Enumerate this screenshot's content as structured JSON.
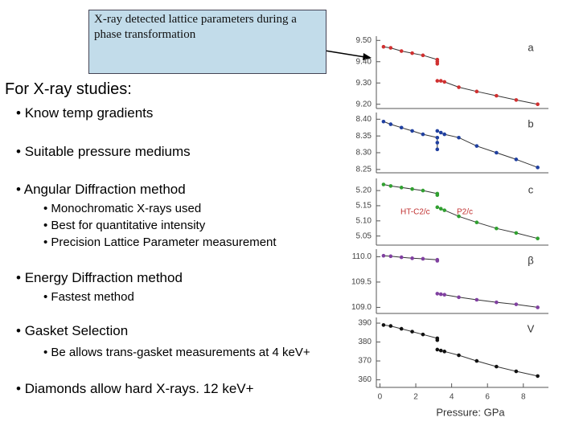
{
  "slide": {
    "callout": "X-ray detected lattice parameters during a phase transformation",
    "heading": "For X-ray studies:",
    "bullets": [
      {
        "text": "Know temp gradients"
      },
      {
        "text": "Suitable pressure mediums"
      },
      {
        "text": "Angular Diffraction method",
        "sub": [
          "Monochromatic X-rays used",
          "Best for quantitative intensity",
          "Precision Lattice Parameter measurement"
        ]
      },
      {
        "text": "Energy Diffraction method",
        "sub": [
          "Fastest method"
        ]
      },
      {
        "text": "Gasket Selection",
        "sub": [
          "Be allows trans-gasket measurements at 4 keV+"
        ]
      },
      {
        "text": "Diamonds allow hard X-rays. 12 keV+"
      }
    ]
  },
  "chart_data": [
    {
      "type": "scatter",
      "label": "a",
      "xlim": [
        -0.2,
        9.4
      ],
      "ylim": [
        9.18,
        9.52
      ],
      "yticks": [
        {
          "value": 9.2,
          "label": "9.20"
        },
        {
          "value": 9.3,
          "label": "9.30"
        },
        {
          "value": 9.4,
          "label": "9.40"
        },
        {
          "value": 9.5,
          "label": "9.50"
        }
      ],
      "line": true,
      "series": [
        {
          "color": "#d03030",
          "x": [
            0.2,
            0.6,
            1.2,
            1.8,
            2.4,
            3.2,
            3.2,
            3.2
          ],
          "values": [
            9.47,
            9.465,
            9.45,
            9.44,
            9.43,
            9.41,
            9.4,
            9.39
          ]
        },
        {
          "color": "#d03030",
          "x": [
            3.2,
            3.4,
            3.6,
            4.4,
            5.4,
            6.5,
            7.6,
            8.8
          ],
          "values": [
            9.31,
            9.31,
            9.305,
            9.28,
            9.26,
            9.24,
            9.22,
            9.2
          ]
        }
      ]
    },
    {
      "type": "scatter",
      "label": "b",
      "xlim": [
        -0.2,
        9.4
      ],
      "ylim": [
        8.24,
        8.42
      ],
      "yticks": [
        8.25,
        {
          "value": 8.3,
          "label": "8.30"
        },
        8.35,
        {
          "value": 8.4,
          "label": "8.40"
        }
      ],
      "line": true,
      "series": [
        {
          "color": "#2040a0",
          "x": [
            0.2,
            0.6,
            1.2,
            1.8,
            2.4,
            3.2,
            3.2,
            3.2
          ],
          "values": [
            8.393,
            8.385,
            8.375,
            8.365,
            8.355,
            8.345,
            8.33,
            8.31
          ]
        },
        {
          "color": "#2040a0",
          "x": [
            3.2,
            3.4,
            3.6,
            4.4,
            5.4,
            6.5,
            7.6,
            8.8
          ],
          "values": [
            8.365,
            8.36,
            8.355,
            8.345,
            8.32,
            8.3,
            8.28,
            8.256
          ]
        }
      ]
    },
    {
      "type": "scatter",
      "label": "c",
      "xlim": [
        -0.2,
        9.4
      ],
      "ylim": [
        5.02,
        5.24
      ],
      "yticks": [
        5.05,
        {
          "value": 5.1,
          "label": "5.10"
        },
        5.15,
        {
          "value": 5.2,
          "label": "5.20"
        }
      ],
      "line": true,
      "annotations": [
        "HT-C2/c",
        "P2/c"
      ],
      "series": [
        {
          "color": "#30a030",
          "x": [
            0.2,
            0.6,
            1.2,
            1.8,
            2.4,
            3.2,
            3.2
          ],
          "values": [
            5.22,
            5.215,
            5.21,
            5.205,
            5.2,
            5.19,
            5.185
          ]
        },
        {
          "color": "#30a030",
          "x": [
            3.2,
            3.4,
            3.6,
            4.4,
            5.4,
            6.5,
            7.6,
            8.8
          ],
          "values": [
            5.145,
            5.14,
            5.135,
            5.115,
            5.095,
            5.075,
            5.06,
            5.042
          ]
        }
      ]
    },
    {
      "type": "scatter",
      "label": "β",
      "xlim": [
        -0.2,
        9.4
      ],
      "ylim": [
        108.88,
        110.15
      ],
      "yticks": [
        {
          "value": 109,
          "label": "109.0"
        },
        109.5,
        {
          "value": 110,
          "label": "110.0"
        }
      ],
      "line": true,
      "series": [
        {
          "color": "#8040a0",
          "x": [
            0.2,
            0.6,
            1.2,
            1.8,
            2.4,
            3.2,
            3.2
          ],
          "values": [
            110.02,
            110.01,
            109.99,
            109.97,
            109.96,
            109.94,
            109.92
          ]
        },
        {
          "color": "#8040a0",
          "x": [
            3.2,
            3.4,
            3.6,
            4.4,
            5.4,
            6.5,
            7.6,
            8.8
          ],
          "values": [
            109.27,
            109.26,
            109.25,
            109.2,
            109.15,
            109.1,
            109.06,
            109.0
          ]
        }
      ]
    },
    {
      "type": "scatter",
      "label": "V",
      "xlim": [
        -0.2,
        9.4
      ],
      "ylim": [
        356,
        393
      ],
      "yticks": [
        360,
        370,
        380,
        390
      ],
      "xticks": [
        0,
        2,
        4,
        6,
        8
      ],
      "xlabel": "Pressure: GPa",
      "line": true,
      "series": [
        {
          "color": "#111111",
          "x": [
            0.2,
            0.6,
            1.2,
            1.8,
            2.4,
            3.2,
            3.2
          ],
          "values": [
            389,
            388.5,
            387,
            385.5,
            384,
            382,
            381
          ]
        },
        {
          "color": "#111111",
          "x": [
            3.2,
            3.4,
            3.6,
            4.4,
            5.4,
            6.5,
            7.6,
            8.8
          ],
          "values": [
            376,
            375.5,
            375,
            373,
            370,
            367,
            364.5,
            362
          ]
        }
      ]
    }
  ]
}
